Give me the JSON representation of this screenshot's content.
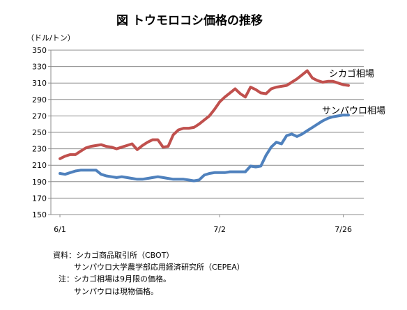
{
  "chart_data": {
    "type": "line",
    "title": "図 トウモロコシ価格の推移",
    "y_unit": "（ドル/トン）",
    "ylim": [
      150,
      350
    ],
    "y_ticks": [
      150,
      170,
      190,
      210,
      230,
      250,
      270,
      290,
      310,
      330,
      350
    ],
    "x_tick_labels": [
      "6/1",
      "7/2",
      "7/26"
    ],
    "x_tick_positions": [
      0,
      31,
      55
    ],
    "x_range": [
      0,
      56
    ],
    "grid": "horizontal",
    "legend": "direct-labels",
    "series": [
      {
        "name": "シカゴ相場",
        "color": "#c0504d",
        "x": [
          0,
          1,
          2,
          3,
          4,
          5,
          6,
          7,
          8,
          9,
          10,
          11,
          12,
          13,
          14,
          15,
          16,
          17,
          18,
          19,
          20,
          21,
          22,
          23,
          24,
          25,
          26,
          27,
          28,
          29,
          30,
          31,
          32,
          33,
          34,
          35,
          36,
          37,
          38,
          39,
          40,
          41,
          42,
          43,
          44,
          45,
          46,
          47,
          48,
          49,
          50,
          51,
          52,
          53,
          54,
          55,
          56
        ],
        "values": [
          218,
          221,
          223,
          223,
          227,
          231,
          233,
          234,
          235,
          233,
          232,
          230,
          232,
          234,
          236,
          229,
          234,
          238,
          241,
          241,
          232,
          233,
          247,
          253,
          255,
          255,
          256,
          260,
          265,
          270,
          278,
          287,
          293,
          298,
          303,
          297,
          293,
          305,
          302,
          298,
          297,
          303,
          305,
          306,
          307,
          311,
          315,
          320,
          325,
          316,
          313,
          311,
          312,
          312,
          310,
          308,
          307
        ],
        "label_text": "シカゴ相場"
      },
      {
        "name": "サンパウロ相場",
        "color": "#4f81bd",
        "x": [
          0,
          1,
          2,
          3,
          4,
          5,
          6,
          7,
          8,
          9,
          10,
          11,
          12,
          13,
          14,
          15,
          16,
          17,
          18,
          19,
          20,
          21,
          22,
          23,
          24,
          25,
          26,
          27,
          28,
          29,
          30,
          31,
          32,
          33,
          34,
          35,
          36,
          37,
          38,
          39,
          40,
          41,
          42,
          43,
          44,
          45,
          46,
          47,
          48,
          49,
          50,
          51,
          52,
          53,
          54,
          55,
          56
        ],
        "values": [
          200,
          199,
          201,
          203,
          204,
          204,
          204,
          204,
          199,
          197,
          196,
          195,
          196,
          195,
          194,
          193,
          193,
          194,
          195,
          196,
          195,
          194,
          193,
          193,
          193,
          192,
          191,
          192,
          198,
          200,
          201,
          201,
          201,
          202,
          202,
          202,
          202,
          209,
          208,
          209,
          222,
          232,
          238,
          236,
          246,
          248,
          245,
          248,
          252,
          256,
          260,
          264,
          267,
          269,
          270,
          271,
          271
        ],
        "label_text": "サンパウロ相場"
      }
    ]
  },
  "notes": [
    "資料：シカゴ商品取引所（CBOT）",
    "サンパウロ大学農学部応用経済研究所（CEPEA）",
    "注：シカゴ相場は9月限の価格。",
    "サンパウロは現物価格。"
  ]
}
